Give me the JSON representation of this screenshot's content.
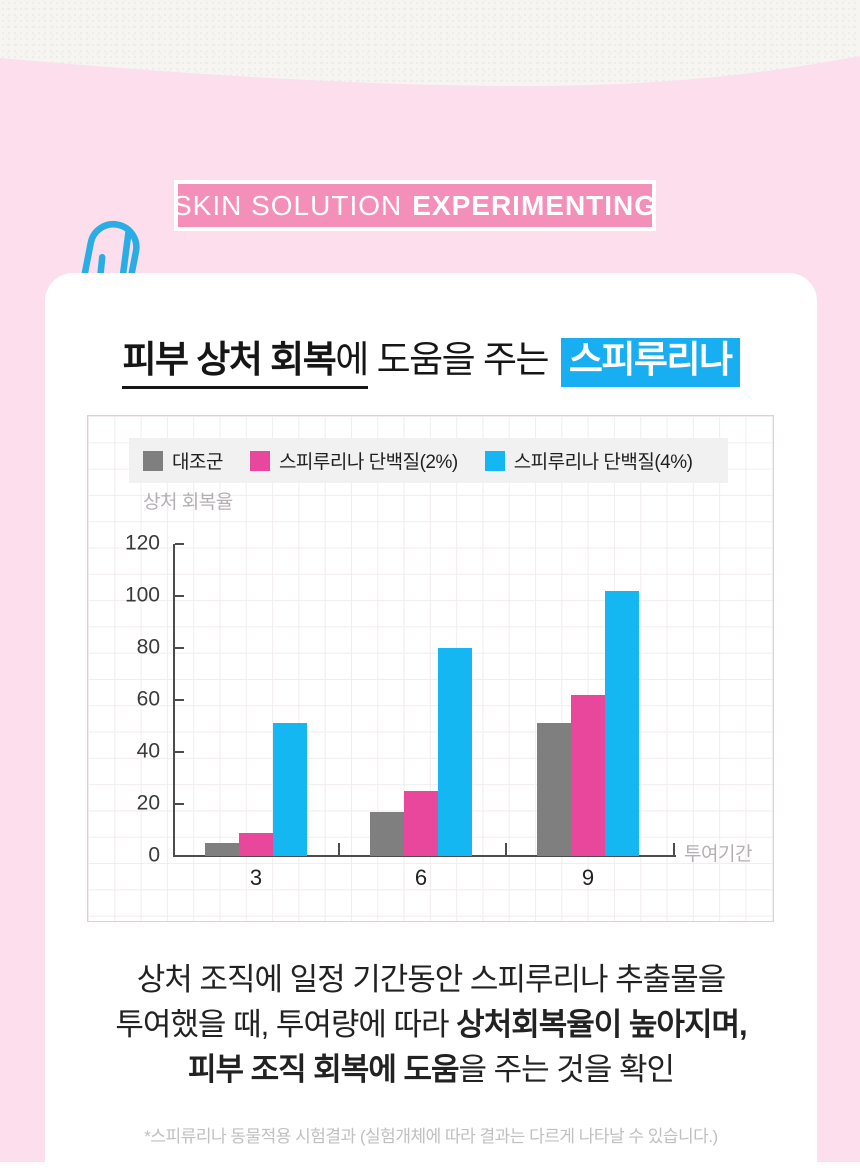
{
  "colors": {
    "pink_background": "#fcdeec",
    "badge_background": "#f48fb9",
    "title_highlight": "#18aef2",
    "paperclip_blue": "#29ade4",
    "legend_strip": "#f2f1f2",
    "axis": "#4c4c4c"
  },
  "badge": {
    "prefix": "SKIN SOLUTION",
    "emphasis": "EXPERIMENTING"
  },
  "title": {
    "underlined_bold": "피부 상처 회복",
    "underlined_tail": "에",
    "middle": " 도움을 주는",
    "highlighted": "스피루리나"
  },
  "chart_data": {
    "type": "bar",
    "title": "",
    "ylabel": "상처 회복율",
    "xlabel": "투여기간",
    "categories": [
      "3",
      "6",
      "9"
    ],
    "series": [
      {
        "name": "대조군",
        "color": "#7f7f7f",
        "values": [
          5,
          17,
          51
        ]
      },
      {
        "name": "스피루리나 단백질(2%)",
        "color": "#e8479b",
        "values": [
          9,
          25,
          62
        ]
      },
      {
        "name": "스피루리나 단백질(4%)",
        "color": "#15b7f2",
        "values": [
          51,
          80,
          102
        ]
      }
    ],
    "ylim": [
      0,
      120
    ],
    "yticks": [
      0,
      20,
      40,
      60,
      80,
      100,
      120
    ],
    "grid": true,
    "legend_position": "top"
  },
  "summary": {
    "line1": "상처 조직에 일정 기간동안 스피루리나 추출물을",
    "line2_regular": "투여했을 때, 투여량에 따라 ",
    "line2_bold": "상처회복율이 높아지며,",
    "line3_bold": "피부 조직 회복에 도움",
    "line3_regular": "을 주는 것을 확인"
  },
  "footnote": "*스피류리나 동물적용 시험결과 (실험개체에 따라 결과는 다르게 나타날 수 있습니다.)"
}
